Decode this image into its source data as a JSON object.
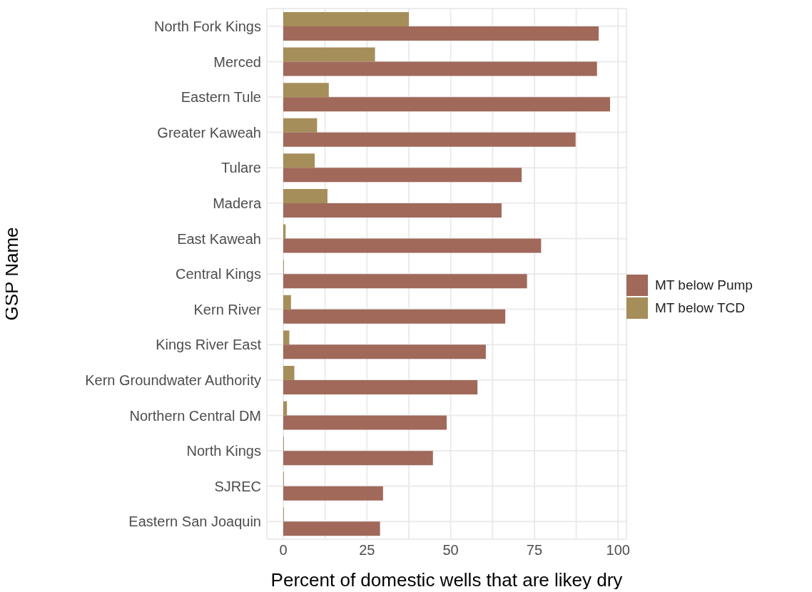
{
  "chart_data": {
    "type": "bar",
    "orientation": "horizontal",
    "xlabel": "Percent of domestic wells that are likey dry",
    "ylabel": "GSP Name",
    "categories": [
      "North Fork Kings",
      "Merced",
      "Eastern Tule",
      "Greater Kaweah",
      "Tulare",
      "Madera",
      "East Kaweah",
      "Central Kings",
      "Kern River",
      "Kings River East",
      "Kern Groundwater Authority",
      "Northern Central DM",
      "North Kings",
      "SJREC",
      "Eastern San Joaquin"
    ],
    "series": [
      {
        "name": "MT below Pump",
        "color": "#a0695a",
        "values": [
          94.2,
          93.7,
          97.6,
          87.3,
          71.2,
          65.2,
          77.0,
          72.8,
          66.3,
          60.5,
          58.0,
          48.8,
          44.7,
          29.8,
          28.9
        ]
      },
      {
        "name": "MT below TCD",
        "color": "#a68e5a",
        "values": [
          37.5,
          27.4,
          13.6,
          10.1,
          9.4,
          13.2,
          0.7,
          0.2,
          2.3,
          1.8,
          3.3,
          1.1,
          0.2,
          0.2,
          0.2
        ]
      }
    ],
    "xlim": [
      -4.9,
      102.5
    ],
    "xticks": [
      0,
      {
        "value": 12.5,
        "label": null
      },
      25,
      {
        "value": 37.5,
        "label": null
      },
      50,
      {
        "value": 62.5,
        "label": null
      },
      75,
      {
        "value": 87.5,
        "label": null
      },
      100
    ],
    "grid": true,
    "legend": "right"
  }
}
